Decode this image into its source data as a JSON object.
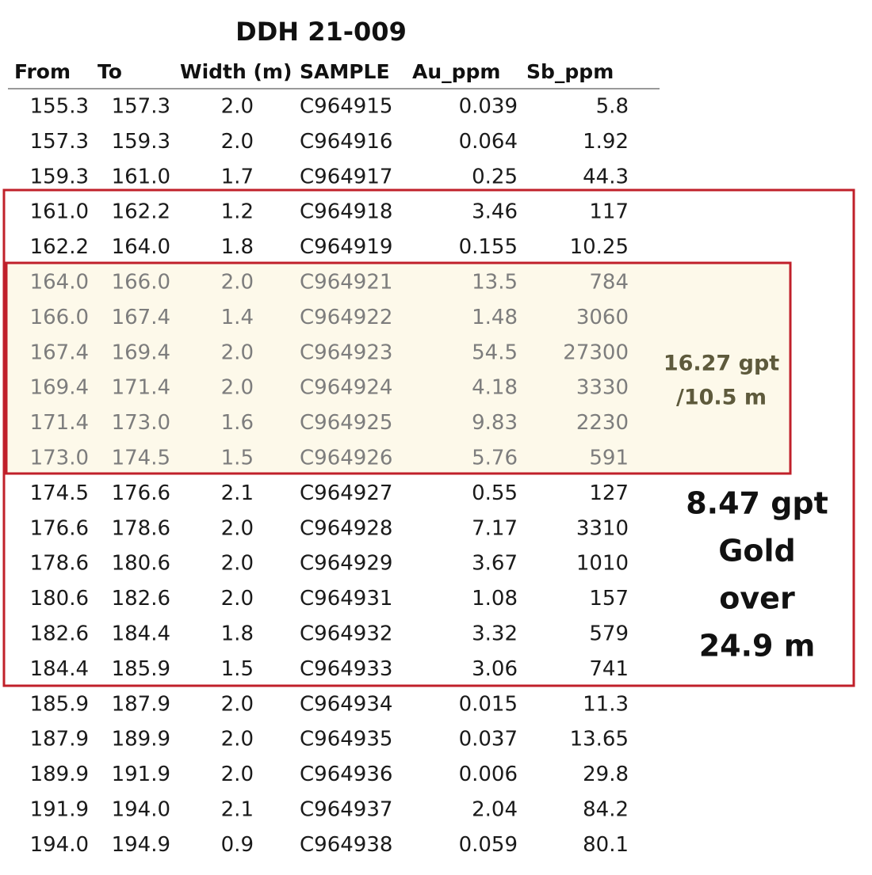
{
  "header": {
    "title": "DDH 21-009"
  },
  "table": {
    "columns": [
      "From",
      "To",
      "Width (m)",
      "SAMPLE",
      "Au_ppm",
      "Sb_ppm"
    ],
    "rows": [
      [
        "155.3",
        "157.3",
        "2.0",
        "C964915",
        "0.039",
        "5.8"
      ],
      [
        "157.3",
        "159.3",
        "2.0",
        "C964916",
        "0.064",
        "1.92"
      ],
      [
        "159.3",
        "161.0",
        "1.7",
        "C964917",
        "0.25",
        "44.3"
      ],
      [
        "161.0",
        "162.2",
        "1.2",
        "C964918",
        "3.46",
        "117"
      ],
      [
        "162.2",
        "164.0",
        "1.8",
        "C964919",
        "0.155",
        "10.25"
      ],
      [
        "164.0",
        "166.0",
        "2.0",
        "C964921",
        "13.5",
        "784"
      ],
      [
        "166.0",
        "167.4",
        "1.4",
        "C964922",
        "1.48",
        "3060"
      ],
      [
        "167.4",
        "169.4",
        "2.0",
        "C964923",
        "54.5",
        "27300"
      ],
      [
        "169.4",
        "171.4",
        "2.0",
        "C964924",
        "4.18",
        "3330"
      ],
      [
        "171.4",
        "173.0",
        "1.6",
        "C964925",
        "9.83",
        "2230"
      ],
      [
        "173.0",
        "174.5",
        "1.5",
        "C964926",
        "5.76",
        "591"
      ],
      [
        "174.5",
        "176.6",
        "2.1",
        "C964927",
        "0.55",
        "127"
      ],
      [
        "176.6",
        "178.6",
        "2.0",
        "C964928",
        "7.17",
        "3310"
      ],
      [
        "178.6",
        "180.6",
        "2.0",
        "C964929",
        "3.67",
        "1010"
      ],
      [
        "180.6",
        "182.6",
        "2.0",
        "C964931",
        "1.08",
        "157"
      ],
      [
        "182.6",
        "184.4",
        "1.8",
        "C964932",
        "3.32",
        "579"
      ],
      [
        "184.4",
        "185.9",
        "1.5",
        "C964933",
        "3.06",
        "741"
      ],
      [
        "185.9",
        "187.9",
        "2.0",
        "C964934",
        "0.015",
        "11.3"
      ],
      [
        "187.9",
        "189.9",
        "2.0",
        "C964935",
        "0.037",
        "13.65"
      ],
      [
        "189.9",
        "191.9",
        "2.0",
        "C964936",
        "0.006",
        "29.8"
      ],
      [
        "191.9",
        "194.0",
        "2.1",
        "C964937",
        "2.04",
        "84.2"
      ],
      [
        "194.0",
        "194.9",
        "0.9",
        "C964938",
        "0.059",
        "80.1"
      ]
    ]
  },
  "annotations": {
    "inner": [
      "16.27 gpt",
      "/10.5 m"
    ],
    "outer": [
      "8.47 gpt",
      "Gold",
      "over",
      "24.9 m"
    ]
  }
}
